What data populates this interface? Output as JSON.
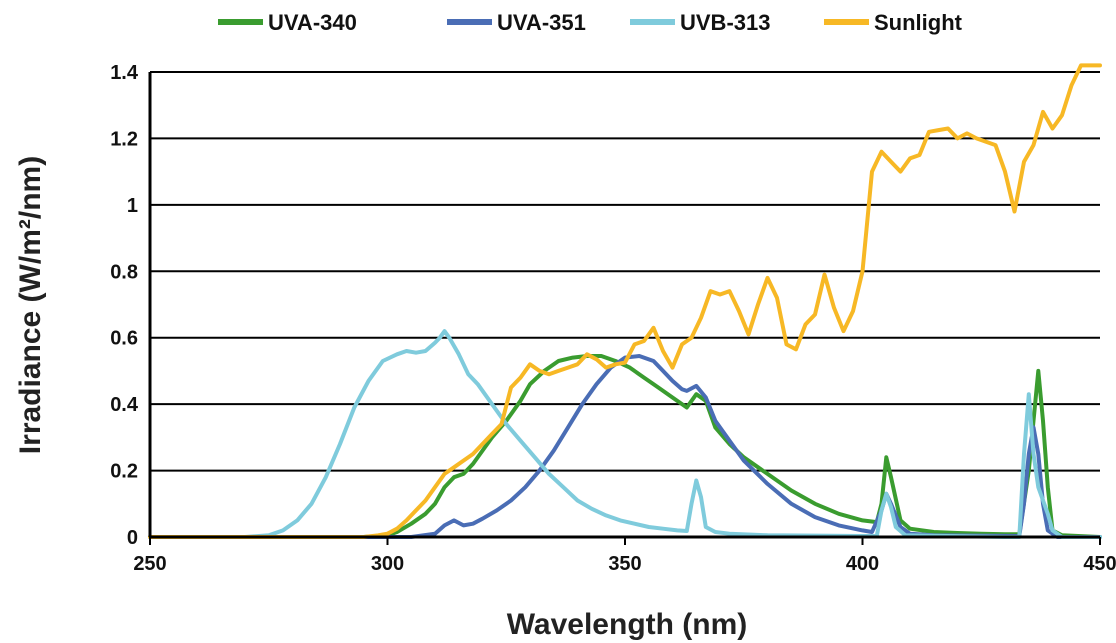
{
  "chart_data": {
    "type": "line",
    "xlabel": "Wavelength (nm)",
    "ylabel": "Irradiance (W/m²/nm)",
    "xlim": [
      250,
      450
    ],
    "ylim": [
      0,
      1.4
    ],
    "x_ticks": [
      250,
      300,
      350,
      400,
      450
    ],
    "y_ticks": [
      0,
      0.2,
      0.4,
      0.6,
      0.8,
      1.0,
      1.2,
      1.4
    ],
    "y_tick_labels": [
      "0",
      "0.2",
      "0.4",
      "0.6",
      "0.8",
      "1",
      "1.2",
      "1.4"
    ],
    "grid": "horizontal",
    "legend_position": "top",
    "series": [
      {
        "name": "UVA-340",
        "color": "#3a9c2f",
        "points": [
          [
            250,
            0
          ],
          [
            280,
            0
          ],
          [
            295,
            0
          ],
          [
            300,
            0.005
          ],
          [
            302,
            0.015
          ],
          [
            305,
            0.04
          ],
          [
            308,
            0.07
          ],
          [
            310,
            0.1
          ],
          [
            312,
            0.15
          ],
          [
            314,
            0.18
          ],
          [
            316,
            0.19
          ],
          [
            318,
            0.22
          ],
          [
            320,
            0.26
          ],
          [
            322,
            0.3
          ],
          [
            325,
            0.35
          ],
          [
            328,
            0.41
          ],
          [
            330,
            0.46
          ],
          [
            333,
            0.5
          ],
          [
            336,
            0.53
          ],
          [
            339,
            0.54
          ],
          [
            342,
            0.545
          ],
          [
            345,
            0.545
          ],
          [
            348,
            0.53
          ],
          [
            351,
            0.51
          ],
          [
            354,
            0.48
          ],
          [
            357,
            0.45
          ],
          [
            360,
            0.42
          ],
          [
            363,
            0.39
          ],
          [
            365,
            0.43
          ],
          [
            367,
            0.41
          ],
          [
            369,
            0.33
          ],
          [
            372,
            0.28
          ],
          [
            375,
            0.24
          ],
          [
            380,
            0.19
          ],
          [
            385,
            0.14
          ],
          [
            390,
            0.1
          ],
          [
            395,
            0.07
          ],
          [
            400,
            0.05
          ],
          [
            403,
            0.045
          ],
          [
            404,
            0.1
          ],
          [
            405,
            0.24
          ],
          [
            406,
            0.18
          ],
          [
            408,
            0.05
          ],
          [
            410,
            0.025
          ],
          [
            415,
            0.015
          ],
          [
            420,
            0.012
          ],
          [
            425,
            0.01
          ],
          [
            430,
            0.008
          ],
          [
            433,
            0.008
          ],
          [
            435,
            0.2
          ],
          [
            436,
            0.35
          ],
          [
            437,
            0.5
          ],
          [
            438,
            0.35
          ],
          [
            439,
            0.15
          ],
          [
            440,
            0.02
          ],
          [
            442,
            0.005
          ],
          [
            450,
            0
          ]
        ]
      },
      {
        "name": "UVA-351",
        "color": "#4a6db5",
        "points": [
          [
            250,
            0
          ],
          [
            290,
            0
          ],
          [
            305,
            0
          ],
          [
            310,
            0.01
          ],
          [
            312,
            0.035
          ],
          [
            314,
            0.05
          ],
          [
            316,
            0.035
          ],
          [
            318,
            0.04
          ],
          [
            320,
            0.055
          ],
          [
            323,
            0.08
          ],
          [
            326,
            0.11
          ],
          [
            329,
            0.15
          ],
          [
            332,
            0.2
          ],
          [
            335,
            0.26
          ],
          [
            338,
            0.33
          ],
          [
            341,
            0.4
          ],
          [
            344,
            0.46
          ],
          [
            347,
            0.51
          ],
          [
            350,
            0.54
          ],
          [
            353,
            0.545
          ],
          [
            356,
            0.53
          ],
          [
            358,
            0.5
          ],
          [
            360,
            0.47
          ],
          [
            362,
            0.445
          ],
          [
            363,
            0.44
          ],
          [
            365,
            0.455
          ],
          [
            367,
            0.42
          ],
          [
            369,
            0.35
          ],
          [
            372,
            0.29
          ],
          [
            375,
            0.23
          ],
          [
            380,
            0.16
          ],
          [
            385,
            0.1
          ],
          [
            390,
            0.06
          ],
          [
            395,
            0.035
          ],
          [
            400,
            0.02
          ],
          [
            402,
            0.015
          ],
          [
            404,
            0.08
          ],
          [
            405,
            0.13
          ],
          [
            406,
            0.1
          ],
          [
            408,
            0.03
          ],
          [
            410,
            0.01
          ],
          [
            415,
            0.005
          ],
          [
            433,
            0.003
          ],
          [
            434,
            0.1
          ],
          [
            435,
            0.25
          ],
          [
            436,
            0.33
          ],
          [
            437,
            0.25
          ],
          [
            438,
            0.1
          ],
          [
            439,
            0.02
          ],
          [
            441,
            0
          ],
          [
            450,
            0
          ]
        ]
      },
      {
        "name": "UVB-313",
        "color": "#7fcbdc",
        "points": [
          [
            250,
            0
          ],
          [
            270,
            0
          ],
          [
            275,
            0.005
          ],
          [
            278,
            0.02
          ],
          [
            281,
            0.05
          ],
          [
            284,
            0.1
          ],
          [
            287,
            0.18
          ],
          [
            290,
            0.28
          ],
          [
            293,
            0.39
          ],
          [
            296,
            0.47
          ],
          [
            299,
            0.53
          ],
          [
            302,
            0.55
          ],
          [
            304,
            0.56
          ],
          [
            306,
            0.555
          ],
          [
            308,
            0.56
          ],
          [
            310,
            0.585
          ],
          [
            311,
            0.6
          ],
          [
            312,
            0.62
          ],
          [
            313,
            0.6
          ],
          [
            315,
            0.55
          ],
          [
            317,
            0.49
          ],
          [
            319,
            0.46
          ],
          [
            322,
            0.4
          ],
          [
            325,
            0.34
          ],
          [
            328,
            0.29
          ],
          [
            331,
            0.24
          ],
          [
            334,
            0.19
          ],
          [
            337,
            0.15
          ],
          [
            340,
            0.11
          ],
          [
            343,
            0.085
          ],
          [
            346,
            0.065
          ],
          [
            349,
            0.05
          ],
          [
            352,
            0.04
          ],
          [
            355,
            0.03
          ],
          [
            358,
            0.025
          ],
          [
            361,
            0.02
          ],
          [
            363,
            0.018
          ],
          [
            364,
            0.1
          ],
          [
            365,
            0.17
          ],
          [
            366,
            0.12
          ],
          [
            367,
            0.03
          ],
          [
            369,
            0.015
          ],
          [
            372,
            0.01
          ],
          [
            380,
            0.005
          ],
          [
            400,
            0.003
          ],
          [
            403,
            0.003
          ],
          [
            404,
            0.08
          ],
          [
            405,
            0.13
          ],
          [
            406,
            0.09
          ],
          [
            407,
            0.03
          ],
          [
            409,
            0.005
          ],
          [
            430,
            0
          ],
          [
            433,
            0
          ],
          [
            434,
            0.25
          ],
          [
            435,
            0.43
          ],
          [
            436,
            0.25
          ],
          [
            437,
            0.15
          ],
          [
            439,
            0.07
          ],
          [
            440,
            0.02
          ],
          [
            442,
            0
          ],
          [
            450,
            0
          ]
        ]
      },
      {
        "name": "Sunlight",
        "color": "#f7b825",
        "points": [
          [
            250,
            0
          ],
          [
            290,
            0
          ],
          [
            295,
            0
          ],
          [
            298,
            0.005
          ],
          [
            300,
            0.01
          ],
          [
            302,
            0.025
          ],
          [
            304,
            0.05
          ],
          [
            306,
            0.08
          ],
          [
            308,
            0.11
          ],
          [
            310,
            0.15
          ],
          [
            312,
            0.19
          ],
          [
            314,
            0.21
          ],
          [
            316,
            0.23
          ],
          [
            318,
            0.25
          ],
          [
            320,
            0.28
          ],
          [
            322,
            0.31
          ],
          [
            324,
            0.34
          ],
          [
            326,
            0.45
          ],
          [
            328,
            0.48
          ],
          [
            330,
            0.52
          ],
          [
            332,
            0.5
          ],
          [
            334,
            0.49
          ],
          [
            336,
            0.5
          ],
          [
            338,
            0.51
          ],
          [
            340,
            0.52
          ],
          [
            342,
            0.55
          ],
          [
            344,
            0.535
          ],
          [
            346,
            0.51
          ],
          [
            348,
            0.52
          ],
          [
            350,
            0.525
          ],
          [
            352,
            0.58
          ],
          [
            354,
            0.59
          ],
          [
            356,
            0.63
          ],
          [
            358,
            0.56
          ],
          [
            360,
            0.51
          ],
          [
            362,
            0.58
          ],
          [
            364,
            0.6
          ],
          [
            366,
            0.66
          ],
          [
            368,
            0.74
          ],
          [
            370,
            0.73
          ],
          [
            372,
            0.74
          ],
          [
            374,
            0.68
          ],
          [
            376,
            0.61
          ],
          [
            378,
            0.7
          ],
          [
            380,
            0.78
          ],
          [
            382,
            0.72
          ],
          [
            384,
            0.58
          ],
          [
            386,
            0.565
          ],
          [
            388,
            0.64
          ],
          [
            390,
            0.67
          ],
          [
            392,
            0.79
          ],
          [
            394,
            0.69
          ],
          [
            396,
            0.62
          ],
          [
            398,
            0.68
          ],
          [
            400,
            0.8
          ],
          [
            402,
            1.1
          ],
          [
            404,
            1.16
          ],
          [
            406,
            1.13
          ],
          [
            408,
            1.1
          ],
          [
            410,
            1.14
          ],
          [
            412,
            1.15
          ],
          [
            414,
            1.22
          ],
          [
            416,
            1.225
          ],
          [
            418,
            1.23
          ],
          [
            420,
            1.2
          ],
          [
            422,
            1.215
          ],
          [
            424,
            1.2
          ],
          [
            426,
            1.19
          ],
          [
            428,
            1.18
          ],
          [
            430,
            1.1
          ],
          [
            432,
            0.98
          ],
          [
            434,
            1.13
          ],
          [
            436,
            1.18
          ],
          [
            438,
            1.28
          ],
          [
            440,
            1.23
          ],
          [
            442,
            1.27
          ],
          [
            444,
            1.36
          ],
          [
            446,
            1.42
          ],
          [
            450,
            1.42
          ]
        ]
      }
    ]
  }
}
